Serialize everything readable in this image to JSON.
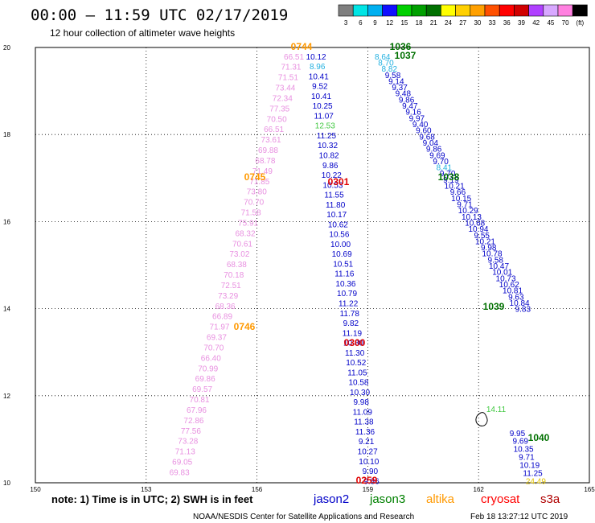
{
  "header": {
    "title": "00:00 – 11:59 UTC 02/17/2019",
    "subtitle": "12 hour collection of altimeter wave heights"
  },
  "color_scale": {
    "labels": [
      "3",
      "6",
      "9",
      "12",
      "15",
      "18",
      "21",
      "24",
      "27",
      "30",
      "33",
      "36",
      "39",
      "42",
      "45",
      "70",
      "(ft)"
    ],
    "colors": [
      "#7f7f7f",
      "#00e5e5",
      "#00b0f0",
      "#1010ff",
      "#00d000",
      "#00a000",
      "#007000",
      "#ffff00",
      "#ffd000",
      "#ffa000",
      "#ff5000",
      "#ff0000",
      "#d00000",
      "#b040ff",
      "#d8a8ff",
      "#ff80e0",
      "#000000"
    ]
  },
  "note": "note:  1) Time is in UTC;  2) SWH is in feet",
  "satellites": [
    {
      "name": "jason2",
      "color": "#0000c8"
    },
    {
      "name": "jason3",
      "color": "#008000"
    },
    {
      "name": "altika",
      "color": "#ff9900"
    },
    {
      "name": "cryosat",
      "color": "#ff0000"
    },
    {
      "name": "s3a",
      "color": "#b00000"
    }
  ],
  "footer": {
    "credit": "NOAA/NESDIS Center for Satellite Applications and Research",
    "timestamp": "Feb 18 13:27:12 UTC 2019"
  },
  "colors": {
    "pink": "#e890e0",
    "blue": "#0000c8",
    "cyan": "#20b0e0",
    "green": "#40c840",
    "darkgreen": "#007000",
    "orange": "#ff9900",
    "red": "#e00000",
    "yellow": "#e0c000",
    "black": "#000000"
  },
  "chart_data": {
    "type": "scatter",
    "xlabel": "",
    "ylabel": "",
    "xlim": [
      150,
      165
    ],
    "ylim": [
      10,
      20
    ],
    "x_ticks": [
      "150",
      "153",
      "156",
      "159",
      "162",
      "165"
    ],
    "y_ticks": [
      "10",
      "12",
      "14",
      "16",
      "18",
      "20"
    ],
    "grid": true,
    "tracks": [
      {
        "satellite": "altika",
        "color_key": "pink",
        "start": [
          157.0,
          19.8
        ],
        "end": [
          153.9,
          10.25
        ],
        "values": [
          "66.51",
          "71.31",
          "71.51",
          "73.44",
          "72.34",
          "77.35",
          "70.50",
          "66.51",
          "73.61",
          "69.88",
          "68.78",
          "71.49",
          "71.85",
          "73.80",
          "70.70",
          "71.58",
          "75.91",
          "68.32",
          "70.61",
          "73.02",
          "68.38",
          "70.18",
          "72.51",
          "73.29",
          "68.36",
          "66.89",
          "71.97",
          "69.37",
          "70.70",
          "66.40",
          "70.99",
          "69.86",
          "69.57",
          "70.81",
          "67.96",
          "72.86",
          "77.56",
          "73.28",
          "71.13",
          "69.05",
          "69.83"
        ]
      },
      {
        "satellite": "jason2",
        "color_key": "blue",
        "start": [
          157.6,
          19.8
        ],
        "end": [
          159.1,
          10.05
        ],
        "values": [
          "10.12",
          "8.96",
          "10.41",
          "9.52",
          "10.41",
          "10.25",
          "11.07",
          "12.53",
          "11.25",
          "10.32",
          "10.82",
          "9.86",
          "10.22",
          "10.53",
          "11.55",
          "11.80",
          "10.17",
          "10.62",
          "10.56",
          "10.00",
          "10.69",
          "10.51",
          "11.16",
          "10.36",
          "10.79",
          "11.22",
          "11.78",
          "9.82",
          "11.19",
          "10.80",
          "11.30",
          "10.52",
          "11.05",
          "10.58",
          "10.30",
          "9.98",
          "11.09",
          "11.38",
          "11.36",
          "9.21",
          "10.27",
          "10.10",
          "9.90",
          "9.86"
        ],
        "special": {
          "1": "cyan",
          "7": "green"
        }
      },
      {
        "satellite": "jason3",
        "color_key": "blue",
        "start": [
          159.4,
          19.8
        ],
        "end": [
          163.2,
          14.0
        ],
        "values": [
          "8.64",
          "8.70",
          "8.82",
          "9.58",
          "9.14",
          "9.37",
          "9.48",
          "9.86",
          "9.47",
          "9.16",
          "9.97",
          "9.40",
          "9.60",
          "9.68",
          "9.04",
          "9.86",
          "9.69",
          "9.70",
          "8.41",
          "9.70",
          "9.19",
          "10.21",
          "9.66",
          "10.15",
          "9.71",
          "10.29",
          "10.13",
          "10.68",
          "10.94",
          "9.55",
          "10.21",
          "9.98",
          "10.78",
          "9.58",
          "10.47",
          "10.01",
          "10.73",
          "10.62",
          "10.81",
          "9.63",
          "10.84",
          "9.83"
        ],
        "special": {
          "0": "cyan",
          "1": "cyan",
          "2": "cyan",
          "18": "cyan"
        }
      },
      {
        "satellite": "jason3",
        "color_key": "blue",
        "start": [
          163.05,
          11.15
        ],
        "end": [
          163.55,
          10.05
        ],
        "values": [
          "9.95",
          "9.69",
          "10.35",
          "9.71",
          "10.19",
          "11.25",
          "24.49"
        ],
        "special": {
          "6": "yellow"
        }
      }
    ],
    "pass_labels": [
      {
        "text": "0744",
        "color_key": "orange"
      },
      {
        "text": "1036",
        "color_key": "darkgreen"
      },
      {
        "text": "1037",
        "color_key": "darkgreen"
      },
      {
        "text": "0745",
        "color_key": "orange"
      },
      {
        "text": "0301",
        "color_key": "red"
      },
      {
        "text": "1038",
        "color_key": "darkgreen"
      },
      {
        "text": "1039",
        "color_key": "darkgreen"
      },
      {
        "text": "0746",
        "color_key": "orange"
      },
      {
        "text": "0300",
        "color_key": "red"
      },
      {
        "text": "1040",
        "color_key": "darkgreen"
      },
      {
        "text": "0259",
        "color_key": "red"
      },
      {
        "text": "14.11",
        "color_key": "green"
      }
    ]
  }
}
